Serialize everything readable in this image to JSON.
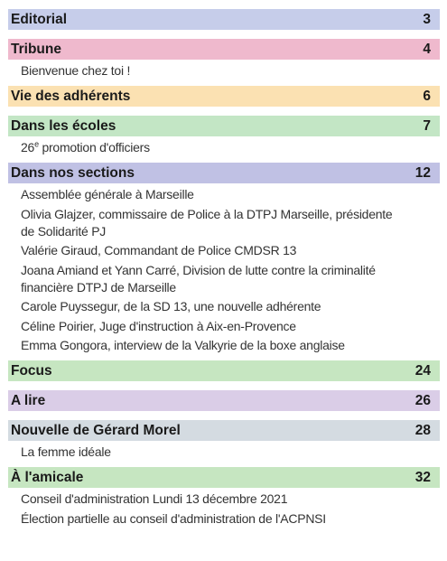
{
  "toc": [
    {
      "title": "Editorial",
      "page": "3",
      "color": "#c6cdea"
    },
    {
      "title": "Tribune",
      "page": "4",
      "color": "#efb9cd",
      "items": [
        [
          "Bienvenue chez toi !"
        ]
      ]
    },
    {
      "title": "Vie des adhérents",
      "page": "6",
      "color": "#fbe1b2"
    },
    {
      "title": "Dans les écoles",
      "page": "7",
      "color": "#c3e6c5",
      "items": [
        [
          {
            "pre": "26",
            "sup": "e",
            "post": " promotion d'officiers"
          }
        ]
      ]
    },
    {
      "title": "Dans nos sections",
      "page": "12",
      "color": "#c0c1e4",
      "items": [
        [
          "Assemblée générale à Marseille"
        ],
        [
          "Olivia Glajzer, commissaire de Police à la DTPJ Marseille, présidente",
          "de Solidarité PJ"
        ],
        [
          "Valérie Giraud, Commandant de Police CMDSR 13"
        ],
        [
          "Joana Amiand et Yann Carré, Division de lutte contre la criminalité",
          "financière DTPJ de Marseille"
        ],
        [
          "Carole Puyssegur, de la SD 13, une nouvelle adhérente"
        ],
        [
          "Céline Poirier, Juge d'instruction à Aix-en-Provence"
        ],
        [
          "Emma Gongora, interview de la Valkyrie de la boxe anglaise"
        ]
      ]
    },
    {
      "title": "Focus",
      "page": "24",
      "color": "#c6e6c1"
    },
    {
      "title": "A lire",
      "page": "26",
      "color": "#dacde7"
    },
    {
      "title": "Nouvelle de Gérard Morel",
      "page": "28",
      "color": "#d4dbe1",
      "items": [
        [
          "La femme idéale"
        ]
      ]
    },
    {
      "title": "À l'amicale",
      "page": "32",
      "color": "#c6e6c1",
      "items": [
        [
          "Conseil d'administration Lundi 13 décembre 2021"
        ],
        [
          "Élection partielle au conseil d'administration de l'ACPNSI"
        ]
      ]
    }
  ]
}
